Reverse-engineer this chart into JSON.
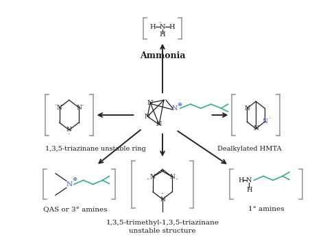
{
  "background_color": "#ffffff",
  "text_color": "#1a1a1a",
  "teal_color": "#3aaa8a",
  "blue_color": "#3355aa",
  "bracket_color": "#999999",
  "arrow_color": "#222222",
  "label_fontsize": 7.5,
  "bold_fontsize": 9,
  "mol_fontsize": 7,
  "labels": {
    "ammonia": "Ammonia",
    "left": "1,3,5-triazinane unstable ring",
    "right": "Dealkylated HMTA",
    "bottom_line1": "1,3,5-trimethyl-1,3,5-triazinane",
    "bottom_line2": "unstable structure",
    "qas": "QAS or 3° amines",
    "amines": "1° amines"
  }
}
